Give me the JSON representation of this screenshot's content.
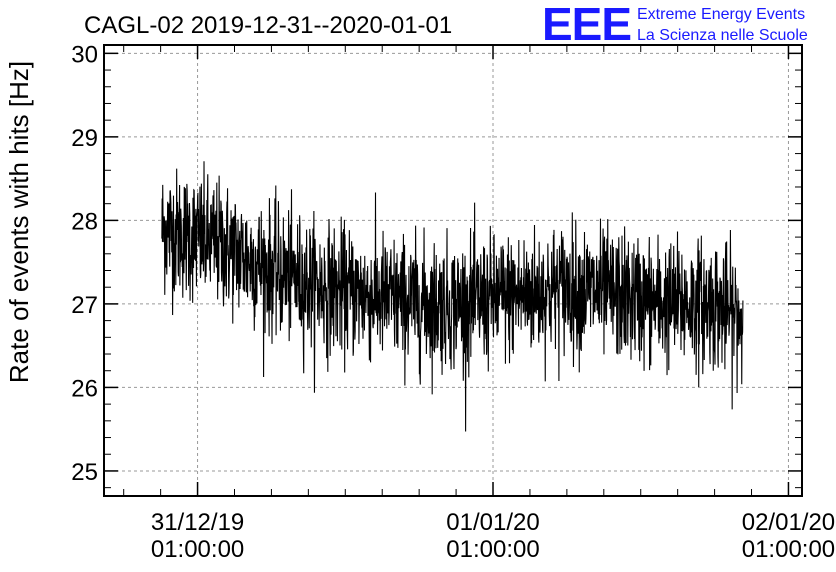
{
  "header": {
    "title": "CAGL-02 2019-12-31--2020-01-01",
    "logo": "EEE",
    "logo_line1": "Extreme Energy Events",
    "logo_line2": "La Scienza nelle Scuole",
    "logo_color": "#1a1aff"
  },
  "chart_data": {
    "type": "line",
    "title": "CAGL-02 2019-12-31--2020-01-01",
    "xlabel": "",
    "ylabel": "Rate of events with hits [Hz]",
    "ylim": [
      24.7,
      30.1
    ],
    "y_ticks": [
      25,
      26,
      27,
      28,
      29,
      30
    ],
    "x_ticks": [
      {
        "date": "31/12/19",
        "time": "01:00:00",
        "hours": 0
      },
      {
        "date": "01/01/20",
        "time": "01:00:00",
        "hours": 24
      },
      {
        "date": "02/01/20",
        "time": "01:00:00",
        "hours": 48
      }
    ],
    "xlim_hours": [
      -7.6,
      49.1
    ],
    "x_range_hours": [
      -2.9,
      44.3
    ],
    "grid": true,
    "line_color": "#000000",
    "series": [
      {
        "x_hours": [
          -2.9,
          -0.5,
          2,
          6,
          10,
          14,
          18,
          22,
          26,
          30,
          34,
          38,
          42,
          44.3
        ],
        "mean_rate": [
          27.9,
          27.8,
          27.7,
          27.4,
          27.2,
          27.1,
          27.0,
          27.0,
          27.1,
          27.2,
          27.1,
          27.0,
          27.0,
          26.8
        ]
      }
    ]
  }
}
